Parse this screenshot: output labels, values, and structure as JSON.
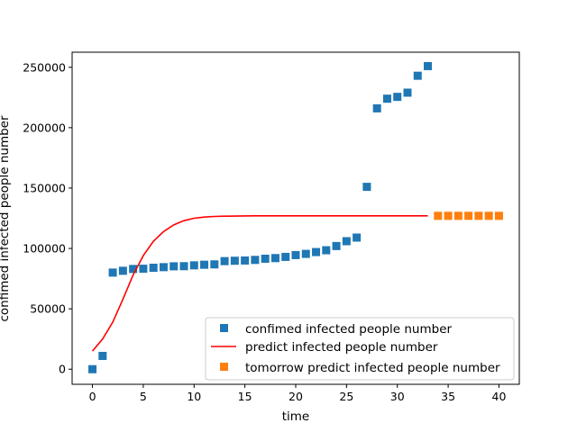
{
  "chart_data": {
    "type": "scatter",
    "title": "",
    "xlabel": "time",
    "ylabel": "confimed infected people number",
    "xlim": [
      -2,
      42
    ],
    "ylim": [
      -12500,
      262500
    ],
    "xticks": [
      0,
      5,
      10,
      15,
      20,
      25,
      30,
      35,
      40
    ],
    "xtick_labels": [
      "0",
      "5",
      "10",
      "15",
      "20",
      "25",
      "30",
      "35",
      "40"
    ],
    "yticks": [
      0,
      50000,
      100000,
      150000,
      200000,
      250000
    ],
    "ytick_labels": [
      "0",
      "50000",
      "100000",
      "150000",
      "200000",
      "250000"
    ],
    "grid": false,
    "legend_position": "lower right",
    "series": [
      {
        "name": "confimed infected people number",
        "kind": "square-marker",
        "color": "#1f77b4",
        "x": [
          0,
          1,
          2,
          3,
          4,
          5,
          6,
          7,
          8,
          9,
          10,
          11,
          12,
          13,
          14,
          15,
          16,
          17,
          18,
          19,
          20,
          21,
          22,
          23,
          24,
          25,
          26,
          27,
          28,
          29,
          30,
          31,
          32,
          33
        ],
        "y": [
          0,
          11000,
          80000,
          81500,
          83000,
          83200,
          84000,
          84500,
          85200,
          85300,
          86000,
          86500,
          86800,
          89500,
          89800,
          90000,
          90500,
          91500,
          92000,
          93000,
          94500,
          95500,
          97000,
          98500,
          102000,
          106000,
          109000,
          151000,
          216000,
          224000,
          225500,
          229000,
          243000,
          251000
        ]
      },
      {
        "name": "predict infected people number",
        "kind": "line",
        "color": "#ff0000",
        "x": [
          0,
          1,
          2,
          3,
          4,
          5,
          6,
          7,
          8,
          9,
          10,
          11,
          12,
          13,
          14,
          15,
          16,
          17,
          18,
          19,
          20,
          21,
          22,
          23,
          24,
          25,
          26,
          27,
          28,
          29,
          30,
          31,
          32,
          33
        ],
        "y": [
          15000,
          25000,
          39000,
          58000,
          78000,
          94000,
          106000,
          114000,
          119500,
          123000,
          125000,
          126000,
          126500,
          126700,
          126800,
          126900,
          127000,
          127000,
          127000,
          127000,
          127000,
          127000,
          127000,
          127000,
          127000,
          127000,
          127000,
          127000,
          127000,
          127000,
          127000,
          127000,
          127000,
          127000
        ]
      },
      {
        "name": "tomorrow predict infected people number",
        "kind": "square-marker",
        "color": "#ff7f0e",
        "x": [
          34,
          35,
          36,
          37,
          38,
          39,
          40
        ],
        "y": [
          127000,
          127000,
          127000,
          127000,
          127000,
          127000,
          127000
        ]
      }
    ]
  }
}
